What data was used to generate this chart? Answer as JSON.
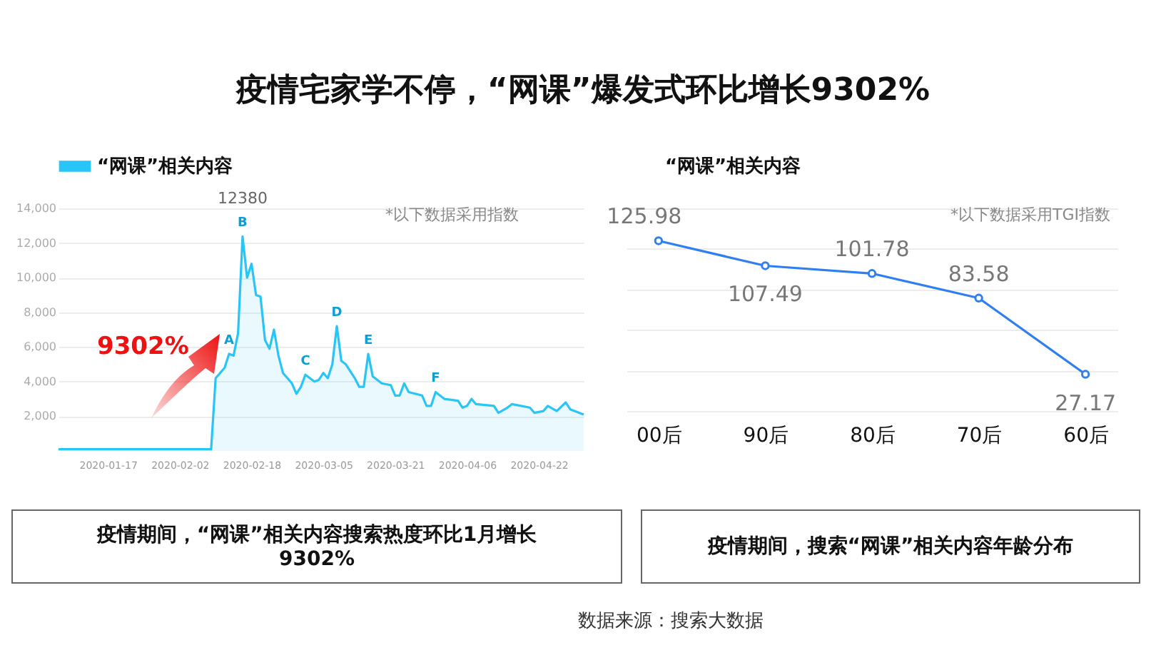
{
  "chart_data": [
    {
      "type": "area",
      "title": "疫情宅家学不停，“网课”爆发式环比增长9302%",
      "legend": "top left",
      "grid": "y",
      "marker": "none",
      "x": [
        "2020-01-06",
        "2020-02-09",
        "2020-02-10",
        "2020-02-12",
        "2020-02-13",
        "2020-02-14",
        "2020-02-15",
        "2020-02-16",
        "2020-02-17",
        "2020-02-18",
        "2020-02-19",
        "2020-02-20",
        "2020-02-21",
        "2020-02-22",
        "2020-02-23",
        "2020-02-24",
        "2020-02-25",
        "2020-02-27",
        "2020-02-28",
        "2020-02-29",
        "2020-03-01",
        "2020-03-03",
        "2020-03-04",
        "2020-03-05",
        "2020-03-06",
        "2020-03-07",
        "2020-03-08",
        "2020-03-09",
        "2020-03-10",
        "2020-03-11",
        "2020-03-12",
        "2020-03-13",
        "2020-03-14",
        "2020-03-15",
        "2020-03-16",
        "2020-03-18",
        "2020-03-20",
        "2020-03-21",
        "2020-03-22",
        "2020-03-23",
        "2020-03-24",
        "2020-03-27",
        "2020-03-28",
        "2020-03-29",
        "2020-03-30",
        "2020-04-01",
        "2020-04-04",
        "2020-04-05",
        "2020-04-06",
        "2020-04-07",
        "2020-04-08",
        "2020-04-12",
        "2020-04-13",
        "2020-04-15",
        "2020-04-16",
        "2020-04-20",
        "2020-04-21",
        "2020-04-23",
        "2020-04-24",
        "2020-04-26",
        "2020-04-28",
        "2020-04-29",
        "2020-05-02"
      ],
      "series": [
        {
          "name": "“网课”相关内容",
          "color": "#29c5f6",
          "values": [
            100,
            100,
            4200,
            4800,
            5600,
            5500,
            6800,
            12380,
            10000,
            10800,
            9000,
            8900,
            6400,
            5900,
            7000,
            5500,
            4500,
            3900,
            3300,
            3700,
            4400,
            4000,
            4100,
            4500,
            4200,
            5000,
            7200,
            5200,
            5000,
            4600,
            4200,
            3700,
            3700,
            5600,
            4300,
            3900,
            3800,
            3200,
            3200,
            3900,
            3400,
            3200,
            2600,
            2600,
            3400,
            3000,
            2900,
            2500,
            2600,
            3000,
            2700,
            2600,
            2200,
            2500,
            2700,
            2500,
            2200,
            2300,
            2600,
            2300,
            2800,
            2400,
            2100
          ]
        }
      ],
      "xlim": [
        "2020-01-06",
        "2020-05-02"
      ],
      "xticks": [
        "2020-01-17",
        "2020-02-02",
        "2020-02-18",
        "2020-03-05",
        "2020-03-21",
        "2020-04-06",
        "2020-04-22"
      ],
      "ylim": [
        0,
        14000
      ],
      "yticks": [
        {
          "value": 2000,
          "label": "2,000"
        },
        {
          "value": 4000,
          "label": "4,000"
        },
        {
          "value": 6000,
          "label": "6,000"
        },
        {
          "value": 8000,
          "label": "8,000"
        },
        {
          "value": 10000,
          "label": "10,000"
        },
        {
          "value": 12000,
          "label": "12,000"
        },
        {
          "value": 14000,
          "label": "14,000"
        }
      ],
      "annotations": [
        "*以下数据采用指数",
        "9302%",
        "疫情期间，“网课”相关内容搜索热度环比1月增长9302%",
        {
          "text": "12380",
          "x": "2020-02-16",
          "y": 12380
        },
        {
          "text": "A",
          "x": "2020-02-13",
          "y": 5600
        },
        {
          "text": "B",
          "x": "2020-02-16",
          "y": 12380
        },
        {
          "text": "C",
          "x": "2020-03-01",
          "y": 4400
        },
        {
          "text": "D",
          "x": "2020-03-08",
          "y": 7200
        },
        {
          "text": "E",
          "x": "2020-03-15",
          "y": 5600
        },
        {
          "text": "F",
          "x": "2020-03-30",
          "y": 3400
        }
      ]
    },
    {
      "type": "line",
      "legend": "top left",
      "grid": "y",
      "marker": "circle",
      "data_labels": true,
      "tick_labels": "x",
      "categories": [
        "00后",
        "90后",
        "80后",
        "70后",
        "60后"
      ],
      "series": [
        {
          "name": "“网课”相关内容",
          "color": "#2f7ff0",
          "values": [
            125.98,
            107.49,
            101.78,
            83.58,
            27.17
          ]
        }
      ],
      "ylim": [
        0,
        150
      ],
      "yticks": [
        {
          "value": 0,
          "label": null
        },
        {
          "value": 30,
          "label": null
        },
        {
          "value": 60,
          "label": null
        },
        {
          "value": 90,
          "label": null
        },
        {
          "value": 120,
          "label": null
        },
        {
          "value": 150,
          "label": null
        }
      ],
      "annotations": [
        "*以下数据采用TGI指数",
        "疫情期间，搜索“网课”相关内容年龄分布",
        "数据来源：搜索大数据"
      ]
    }
  ]
}
